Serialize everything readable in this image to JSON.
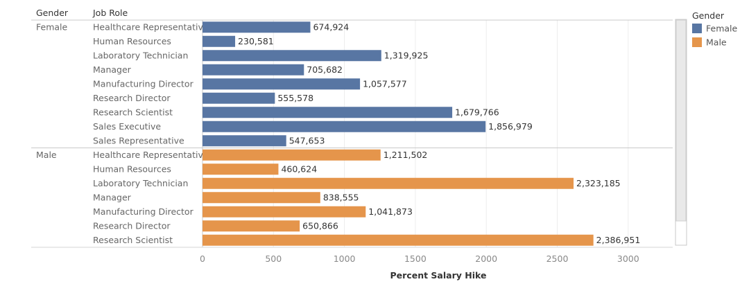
{
  "chart_data": {
    "type": "bar",
    "orientation": "horizontal",
    "headers": {
      "group": "Gender",
      "category": "Job Role"
    },
    "xlabel": "Percent Salary Hike",
    "xlim": [
      0,
      3300
    ],
    "x_ticks": [
      0,
      500,
      1000,
      1500,
      2000,
      2500,
      3000
    ],
    "grid": true,
    "legend": {
      "title": "Gender",
      "placement": "right",
      "items": [
        {
          "label": "Female",
          "color": "#5876a3"
        },
        {
          "label": "Male",
          "color": "#e5954b"
        }
      ]
    },
    "groups": [
      {
        "name": "Female",
        "color": "#5876a3",
        "bars": [
          {
            "category": "Healthcare Representative",
            "value": 760,
            "label": "674,924"
          },
          {
            "category": "Human Resources",
            "value": 230,
            "label": "230,581"
          },
          {
            "category": "Laboratory Technician",
            "value": 1260,
            "label": "1,319,925"
          },
          {
            "category": "Manager",
            "value": 715,
            "label": "705,682"
          },
          {
            "category": "Manufacturing Director",
            "value": 1110,
            "label": "1,057,577"
          },
          {
            "category": "Research Director",
            "value": 510,
            "label": "555,578"
          },
          {
            "category": "Research Scientist",
            "value": 1760,
            "label": "1,679,766"
          },
          {
            "category": "Sales Executive",
            "value": 1995,
            "label": "1,856,979"
          },
          {
            "category": "Sales Representative",
            "value": 590,
            "label": "547,653"
          }
        ]
      },
      {
        "name": "Male",
        "color": "#e5954b",
        "bars": [
          {
            "category": "Healthcare Representative",
            "value": 1255,
            "label": "1,211,502"
          },
          {
            "category": "Human Resources",
            "value": 535,
            "label": "460,624"
          },
          {
            "category": "Laboratory Technician",
            "value": 2615,
            "label": "2,323,185"
          },
          {
            "category": "Manager",
            "value": 830,
            "label": "838,555"
          },
          {
            "category": "Manufacturing Director",
            "value": 1150,
            "label": "1,041,873"
          },
          {
            "category": "Research Director",
            "value": 685,
            "label": "650,866"
          },
          {
            "category": "Research Scientist",
            "value": 2755,
            "label": "2,386,951"
          }
        ]
      }
    ]
  }
}
